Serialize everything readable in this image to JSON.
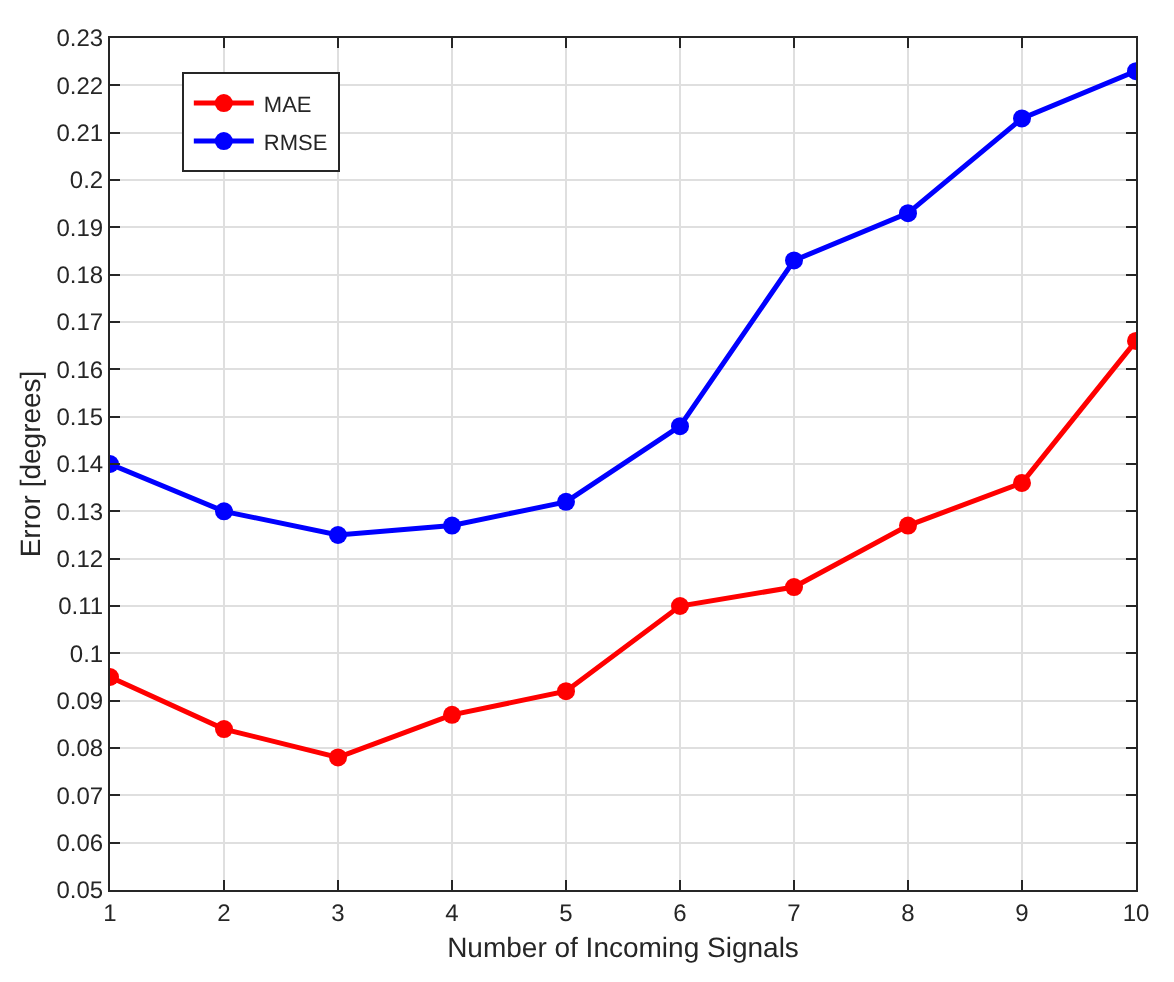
{
  "chart_data": {
    "type": "line",
    "xlabel": "Number of Incoming Signals",
    "ylabel": "Error [degrees]",
    "x": [
      1,
      2,
      3,
      4,
      5,
      6,
      7,
      8,
      9,
      10
    ],
    "series": [
      {
        "name": "MAE",
        "color": "#ff0000",
        "values": [
          0.095,
          0.084,
          0.078,
          0.087,
          0.092,
          0.11,
          0.114,
          0.127,
          0.136,
          0.166
        ]
      },
      {
        "name": "RMSE",
        "color": "#0000ff",
        "values": [
          0.14,
          0.13,
          0.125,
          0.127,
          0.132,
          0.148,
          0.183,
          0.193,
          0.213,
          0.223
        ]
      }
    ],
    "xlim": [
      1,
      10
    ],
    "xticks": [
      1,
      2,
      3,
      4,
      5,
      6,
      7,
      8,
      9,
      10
    ],
    "ylim": [
      0.05,
      0.23
    ],
    "yticks": [
      0.05,
      0.06,
      0.07,
      0.08,
      0.09,
      0.1,
      0.11,
      0.12,
      0.13,
      0.14,
      0.15,
      0.16,
      0.17,
      0.18,
      0.19,
      0.2,
      0.21,
      0.22,
      0.23
    ],
    "grid": true,
    "legend": "top left",
    "marker": "circle",
    "line_style": "solid"
  }
}
